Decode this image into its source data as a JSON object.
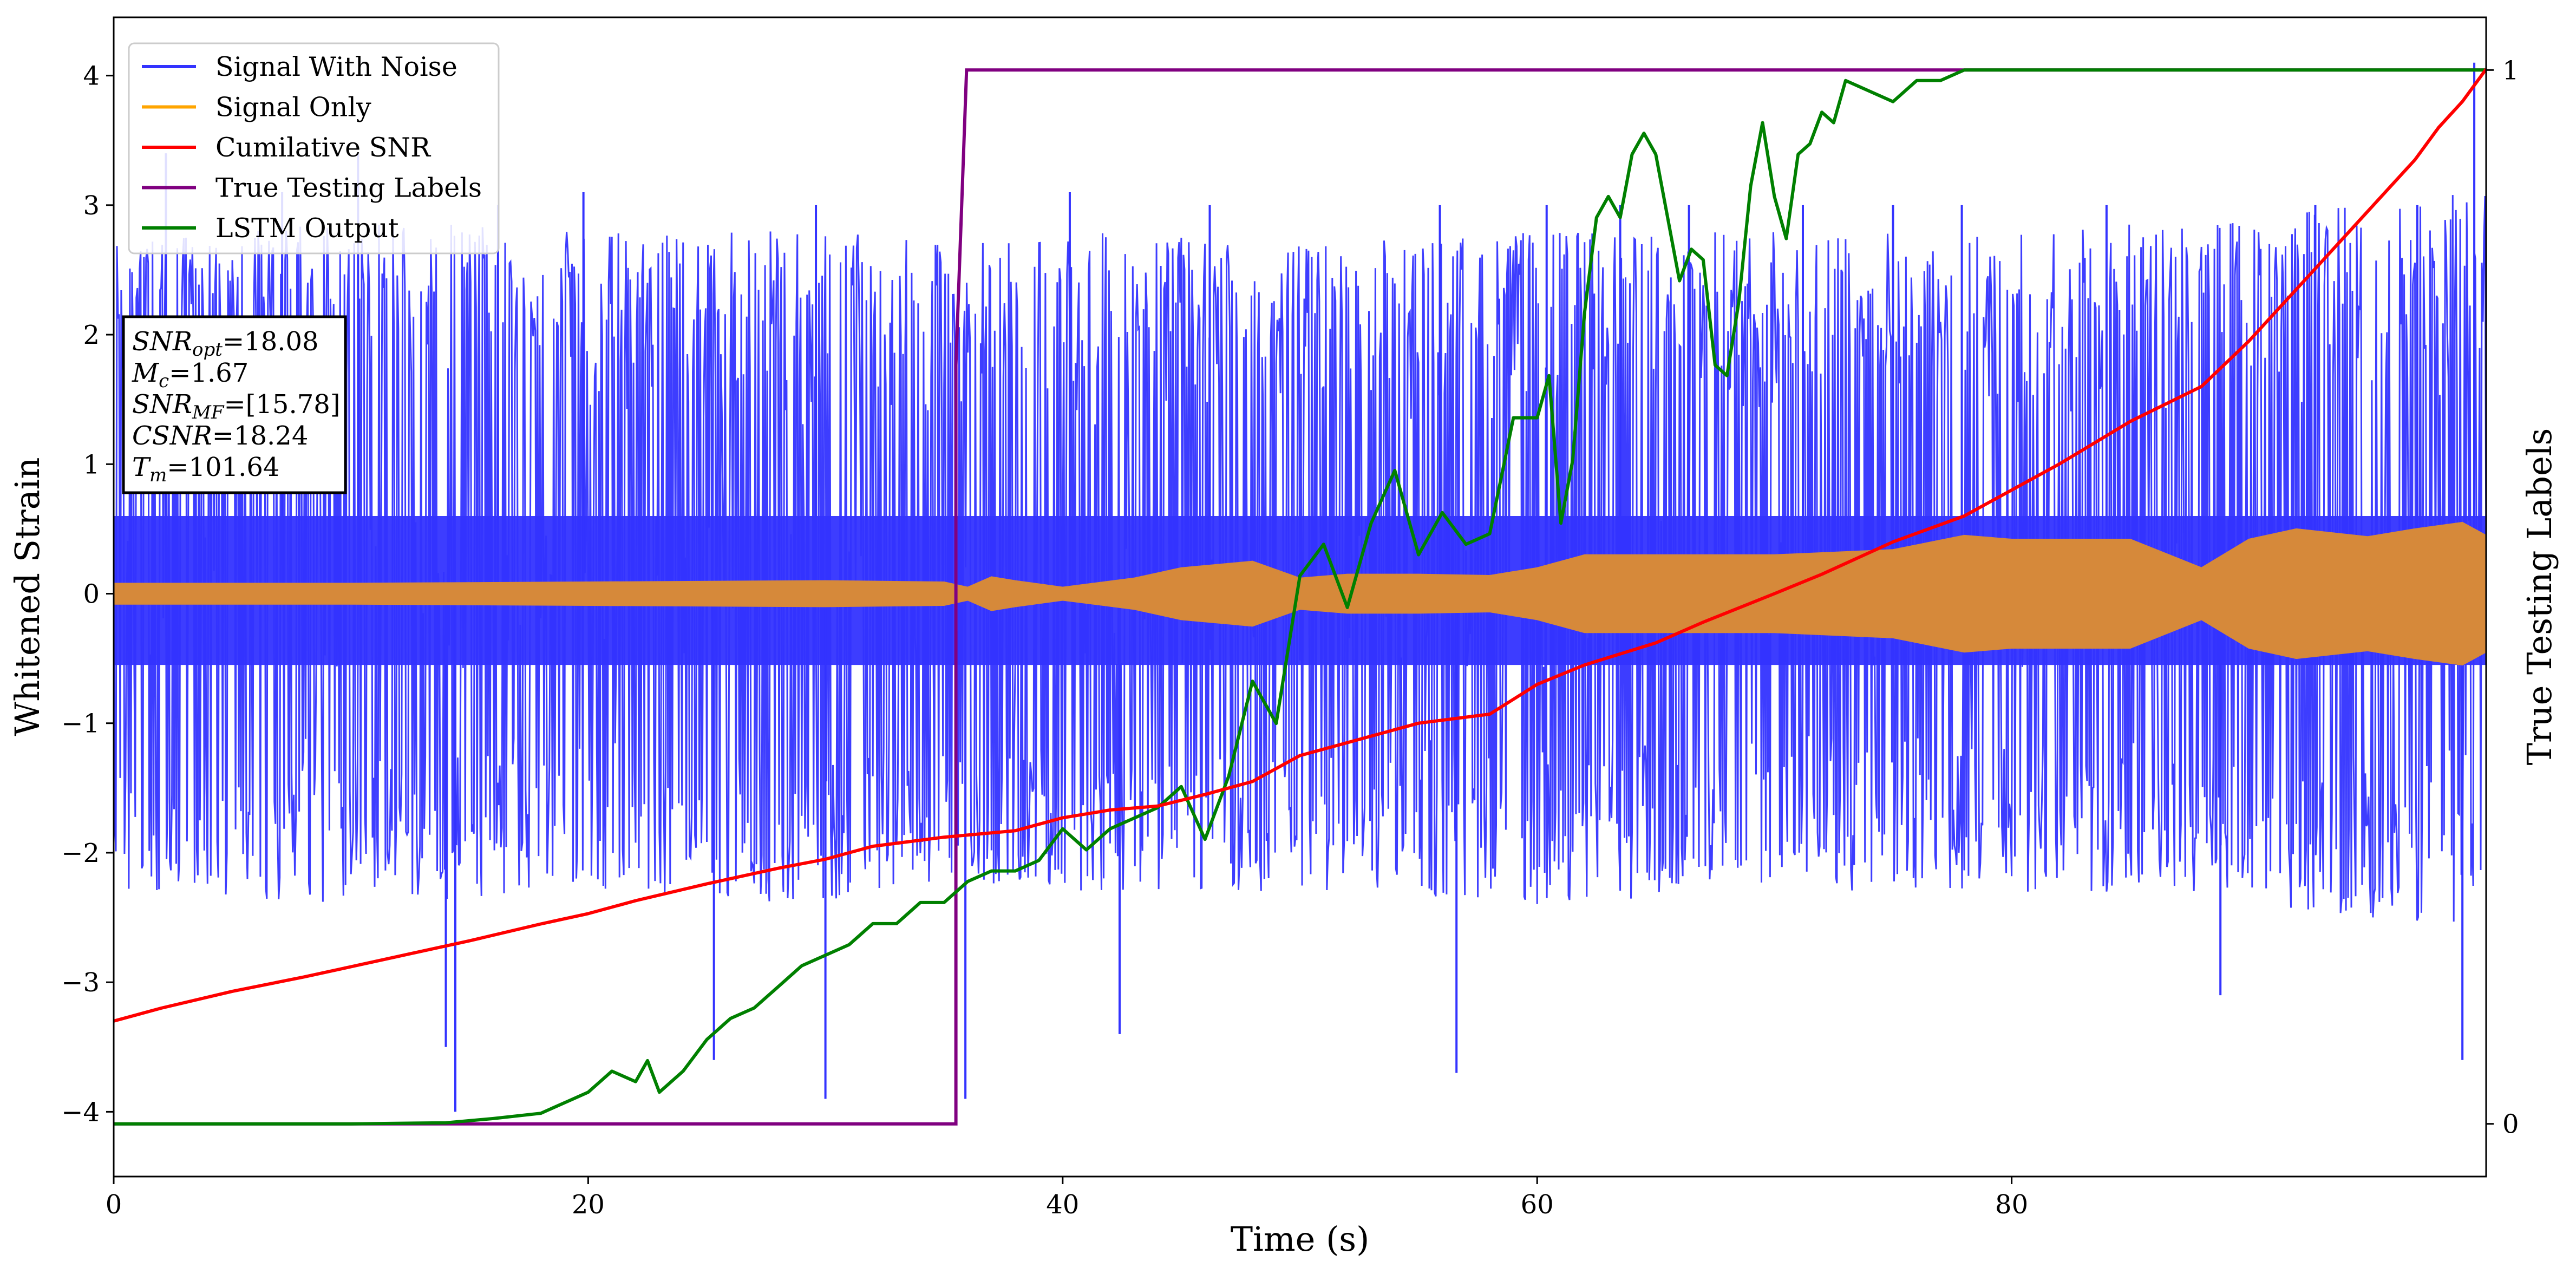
{
  "chart_data": {
    "type": "line",
    "xlabel": "Time (s)",
    "ylabel": "Whitened Strain",
    "ylabel_right": "True Testing Labels",
    "xlim": [
      0,
      100
    ],
    "ylim": [
      -4.5,
      4.45
    ],
    "ylim_right": [
      -0.05,
      1.05
    ],
    "xticks": [
      0,
      20,
      40,
      60,
      80
    ],
    "yticks": [
      -4,
      -3,
      -2,
      -1,
      0,
      1,
      2,
      3,
      4
    ],
    "yticks_right": [
      0,
      1
    ],
    "grid": false,
    "legend_position": "top-left",
    "colors": {
      "signal_with_noise": "#3333ff",
      "signal_only": "#ffa500",
      "signal_only_overlap": "#d6893a",
      "cumulative_snr": "#ff0000",
      "true_labels": "#800080",
      "lstm_output": "#008000"
    },
    "series": [
      {
        "name": "Signal With Noise",
        "axis": "left",
        "style": "dense-noise",
        "envelope": {
          "x": [
            0,
            10,
            20,
            30,
            35,
            40,
            50,
            60,
            70,
            80,
            90,
            100
          ],
          "upper": [
            2.7,
            2.9,
            2.8,
            2.8,
            2.7,
            2.8,
            2.7,
            2.8,
            2.8,
            2.8,
            2.9,
            3.2
          ],
          "lower": [
            -2.3,
            -2.4,
            -2.3,
            -2.4,
            -2.2,
            -2.3,
            -2.3,
            -2.4,
            -2.3,
            -2.3,
            -2.4,
            -2.6
          ],
          "typical_upper": 0.6,
          "typical_lower": -0.55,
          "peaks": [
            [
              2.2,
              3.4
            ],
            [
              7.1,
              3.1
            ],
            [
              10.3,
              3.4
            ],
            [
              14.0,
              -3.5
            ],
            [
              14.4,
              -4.0
            ],
            [
              16.2,
              3.0
            ],
            [
              19.8,
              3.1
            ],
            [
              25.3,
              -3.6
            ],
            [
              29.6,
              3.0
            ],
            [
              30.0,
              -3.9
            ],
            [
              35.9,
              -3.9
            ],
            [
              40.3,
              3.1
            ],
            [
              42.4,
              -3.4
            ],
            [
              46.2,
              3.0
            ],
            [
              55.9,
              3.0
            ],
            [
              56.6,
              -3.7
            ],
            [
              60.4,
              3.0
            ],
            [
              63.5,
              3.0
            ],
            [
              66.4,
              3.0
            ],
            [
              71.2,
              3.0
            ],
            [
              75.0,
              3.0
            ],
            [
              77.9,
              3.0
            ],
            [
              84.0,
              3.0
            ],
            [
              88.8,
              -3.1
            ],
            [
              92.8,
              3.0
            ],
            [
              97.1,
              3.0
            ],
            [
              99.0,
              -3.6
            ],
            [
              99.5,
              4.1
            ]
          ]
        }
      },
      {
        "name": "Signal Only",
        "axis": "left",
        "style": "amplitude-band",
        "x": [
          0,
          10,
          20,
          30,
          35,
          36,
          37,
          38,
          40,
          43,
          45,
          48,
          50,
          52,
          55,
          58,
          60,
          62,
          65,
          70,
          75,
          78,
          80,
          85,
          88,
          90,
          92,
          95,
          97,
          99,
          100
        ],
        "amplitude": [
          0.08,
          0.08,
          0.09,
          0.1,
          0.09,
          0.05,
          0.13,
          0.1,
          0.05,
          0.12,
          0.2,
          0.25,
          0.12,
          0.15,
          0.15,
          0.14,
          0.2,
          0.3,
          0.3,
          0.3,
          0.34,
          0.45,
          0.42,
          0.42,
          0.2,
          0.42,
          0.5,
          0.44,
          0.5,
          0.55,
          0.45
        ]
      },
      {
        "name": "Cumilative SNR",
        "axis": "left",
        "x": [
          0,
          2,
          5,
          8,
          10,
          12,
          15,
          18,
          20,
          22,
          25,
          28,
          30,
          32,
          35,
          38,
          40,
          42,
          44,
          46,
          48,
          50,
          52,
          55,
          58,
          60,
          62,
          65,
          67,
          70,
          72,
          75,
          78,
          80,
          82,
          85,
          88,
          90,
          93,
          95,
          97,
          98,
          99,
          100
        ],
        "y": [
          -3.3,
          -3.2,
          -3.07,
          -2.96,
          -2.88,
          -2.8,
          -2.68,
          -2.55,
          -2.47,
          -2.37,
          -2.24,
          -2.12,
          -2.05,
          -1.95,
          -1.88,
          -1.83,
          -1.73,
          -1.67,
          -1.64,
          -1.55,
          -1.45,
          -1.25,
          -1.15,
          -1.0,
          -0.93,
          -0.7,
          -0.55,
          -0.38,
          -0.22,
          0.0,
          0.15,
          0.4,
          0.6,
          0.8,
          1.0,
          1.33,
          1.6,
          1.95,
          2.55,
          2.95,
          3.35,
          3.6,
          3.8,
          4.05
        ]
      },
      {
        "name": "True Testing Labels",
        "axis": "right",
        "x": [
          0,
          35.5,
          35.5,
          35.95,
          100
        ],
        "y": [
          0,
          0,
          0.72,
          1,
          1
        ]
      },
      {
        "name": "LSTM Output",
        "axis": "right",
        "x": [
          0,
          10,
          14,
          16,
          18,
          19,
          20,
          21,
          22,
          22.5,
          23,
          24,
          25,
          26,
          27,
          28,
          29,
          30,
          31,
          32,
          33,
          34,
          35,
          36,
          37,
          38,
          39,
          40,
          41,
          42,
          43,
          44,
          45,
          46,
          47,
          48,
          49,
          50,
          51,
          52,
          53,
          54,
          55,
          56,
          57,
          58,
          59,
          60,
          60.5,
          61,
          61.5,
          62,
          62.5,
          63,
          63.5,
          64,
          64.5,
          65,
          65.5,
          66,
          66.5,
          67,
          67.5,
          68,
          68.5,
          69,
          69.5,
          70,
          70.5,
          71,
          71.5,
          72,
          72.5,
          73,
          74,
          75,
          76,
          77,
          78,
          80,
          85,
          90,
          95,
          100
        ],
        "y": [
          0,
          0,
          0.001,
          0.005,
          0.01,
          0.02,
          0.03,
          0.05,
          0.04,
          0.06,
          0.03,
          0.05,
          0.08,
          0.1,
          0.11,
          0.13,
          0.15,
          0.16,
          0.17,
          0.19,
          0.19,
          0.21,
          0.21,
          0.23,
          0.24,
          0.24,
          0.25,
          0.28,
          0.26,
          0.28,
          0.29,
          0.3,
          0.32,
          0.27,
          0.33,
          0.42,
          0.38,
          0.52,
          0.55,
          0.49,
          0.57,
          0.62,
          0.54,
          0.58,
          0.55,
          0.56,
          0.67,
          0.67,
          0.71,
          0.57,
          0.63,
          0.77,
          0.86,
          0.88,
          0.86,
          0.92,
          0.94,
          0.92,
          0.86,
          0.8,
          0.83,
          0.82,
          0.72,
          0.71,
          0.78,
          0.89,
          0.95,
          0.88,
          0.84,
          0.92,
          0.93,
          0.96,
          0.95,
          0.99,
          0.98,
          0.97,
          0.99,
          0.99,
          1.0,
          1.0,
          1.0,
          1.0,
          1.0,
          1.0
        ]
      }
    ],
    "annotation": {
      "lines": [
        {
          "name": "SNR",
          "sub": "opt",
          "value": "=18.08"
        },
        {
          "name": "M",
          "sub": "c",
          "value": "=1.67"
        },
        {
          "name": "SNR",
          "sub": "MF",
          "value": "=[15.78]"
        },
        {
          "name": "CSNR",
          "sub": "",
          "value": "=18.24"
        },
        {
          "name": "T",
          "sub": "m",
          "value": "=101.64"
        }
      ]
    }
  }
}
